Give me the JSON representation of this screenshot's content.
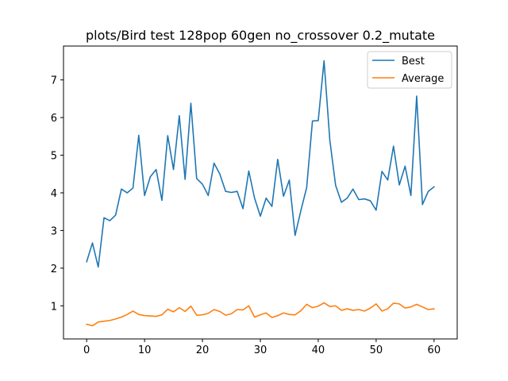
{
  "chart_data": {
    "type": "line",
    "title": "plots/Bird test 128pop 60gen no_crossover 0.2_mutate",
    "xlabel": "",
    "ylabel": "",
    "xlim": [
      -4,
      64
    ],
    "ylim": [
      0.12,
      7.9
    ],
    "x_ticks": [
      0,
      10,
      20,
      30,
      40,
      50,
      60
    ],
    "y_ticks": [
      1,
      2,
      3,
      4,
      5,
      6,
      7
    ],
    "grid": false,
    "legend_position": "top-right",
    "x": [
      0,
      1,
      2,
      3,
      4,
      5,
      6,
      7,
      8,
      9,
      10,
      11,
      12,
      13,
      14,
      15,
      16,
      17,
      18,
      19,
      20,
      21,
      22,
      23,
      24,
      25,
      26,
      27,
      28,
      29,
      30,
      31,
      32,
      33,
      34,
      35,
      36,
      37,
      38,
      39,
      40,
      41,
      42,
      43,
      44,
      45,
      46,
      47,
      48,
      49,
      50,
      51,
      52,
      53,
      54,
      55,
      56,
      57,
      58,
      59,
      60
    ],
    "series": [
      {
        "name": "Best",
        "color": "#1f77b4",
        "values": [
          2.17,
          2.67,
          2.03,
          3.34,
          3.26,
          3.41,
          4.1,
          4.0,
          4.13,
          5.53,
          3.93,
          4.43,
          4.62,
          3.8,
          5.52,
          4.62,
          6.05,
          4.36,
          6.38,
          4.38,
          4.23,
          3.93,
          4.79,
          4.5,
          4.04,
          4.01,
          4.04,
          3.58,
          4.58,
          3.86,
          3.38,
          3.86,
          3.64,
          4.89,
          3.91,
          4.34,
          2.87,
          3.53,
          4.14,
          5.91,
          5.92,
          7.51,
          5.4,
          4.2,
          3.75,
          3.86,
          4.1,
          3.82,
          3.84,
          3.79,
          3.54,
          4.57,
          4.34,
          5.24,
          4.21,
          4.71,
          3.93,
          6.57,
          3.69,
          4.04,
          4.16
        ]
      },
      {
        "name": "Average",
        "color": "#ff7f0e",
        "values": [
          0.51,
          0.47,
          0.57,
          0.59,
          0.61,
          0.65,
          0.7,
          0.77,
          0.86,
          0.77,
          0.74,
          0.73,
          0.72,
          0.76,
          0.91,
          0.84,
          0.95,
          0.85,
          0.99,
          0.75,
          0.76,
          0.8,
          0.9,
          0.85,
          0.75,
          0.79,
          0.9,
          0.89,
          1.0,
          0.7,
          0.76,
          0.81,
          0.69,
          0.74,
          0.81,
          0.77,
          0.76,
          0.87,
          1.04,
          0.95,
          0.99,
          1.08,
          0.98,
          1.0,
          0.88,
          0.92,
          0.88,
          0.9,
          0.86,
          0.94,
          1.05,
          0.86,
          0.92,
          1.07,
          1.05,
          0.94,
          0.97,
          1.04,
          0.97,
          0.9,
          0.92
        ]
      }
    ]
  }
}
